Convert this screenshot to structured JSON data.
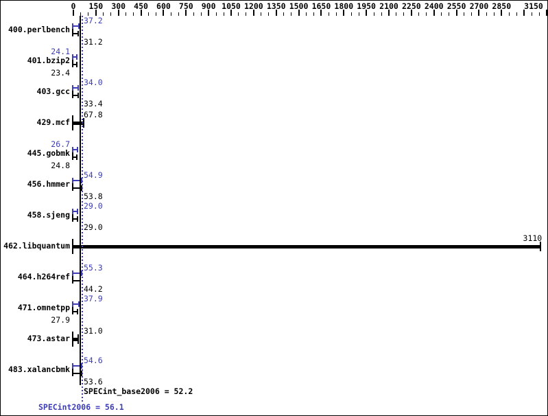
{
  "chart_data": {
    "type": "bar",
    "orientation": "horizontal",
    "title": "",
    "xlabel": "",
    "ylabel": "",
    "axis": {
      "min": 0,
      "max": 3150,
      "major_tick_step": 150,
      "minor_tick_step": 50,
      "tick_labels": [
        "0",
        "150",
        "300",
        "450",
        "600",
        "750",
        "900",
        "1050",
        "1200",
        "1350",
        "1500",
        "1650",
        "1800",
        "1950",
        "2100",
        "2250",
        "2400",
        "2550",
        "2700",
        "2850",
        "3150"
      ],
      "skipped_label": "3000",
      "grid": false
    },
    "legend": {
      "peak_series": "SPECint2006 (peak, blue)",
      "base_series": "SPECint_base2006 (base, black)"
    },
    "colors": {
      "peak": "#3c3cb4",
      "base": "#000000",
      "background": "#ffffff"
    },
    "benchmarks": [
      {
        "name": "400.perlbench",
        "style": "double",
        "peak": 37.2,
        "peak_display": "37.2",
        "peak_side": "right",
        "base": 31.2,
        "base_display": "31.2",
        "base_side": "right"
      },
      {
        "name": "401.bzip2",
        "style": "double",
        "peak": 24.1,
        "peak_display": "24.1",
        "peak_side": "left",
        "base": 23.4,
        "base_display": "23.4",
        "base_side": "left"
      },
      {
        "name": "403.gcc",
        "style": "double",
        "peak": 34.0,
        "peak_display": "34.0",
        "peak_side": "right",
        "base": 33.4,
        "base_display": "33.4",
        "base_side": "right"
      },
      {
        "name": "429.mcf",
        "style": "single",
        "value": 67.8,
        "value_display": "67.8",
        "value_side": "right"
      },
      {
        "name": "445.gobmk",
        "style": "double",
        "peak": 26.7,
        "peak_display": "26.7",
        "peak_side": "left",
        "base": 24.8,
        "base_display": "24.8",
        "base_side": "left"
      },
      {
        "name": "456.hmmer",
        "style": "double",
        "peak": 54.9,
        "peak_display": "54.9",
        "peak_side": "right",
        "base": 53.8,
        "base_display": "53.8",
        "base_side": "right"
      },
      {
        "name": "458.sjeng",
        "style": "double",
        "peak": 29.0,
        "peak_display": "29.0",
        "peak_side": "right",
        "base": 29.0,
        "base_display": "29.0",
        "base_side": "right"
      },
      {
        "name": "462.libquantum",
        "style": "single",
        "value": 3110,
        "value_display": "3110",
        "value_side": "bar_end"
      },
      {
        "name": "464.h264ref",
        "style": "double",
        "peak": 55.3,
        "peak_display": "55.3",
        "peak_side": "right",
        "base": 44.2,
        "base_display": "44.2",
        "base_side": "right"
      },
      {
        "name": "471.omnetpp",
        "style": "double",
        "peak": 37.9,
        "peak_display": "37.9",
        "peak_side": "right",
        "base": 27.9,
        "base_display": "27.9",
        "base_side": "left"
      },
      {
        "name": "473.astar",
        "style": "single",
        "value": 31.0,
        "value_display": "31.0",
        "value_side": "right"
      },
      {
        "name": "483.xalancbmk",
        "style": "double",
        "peak": 54.6,
        "peak_display": "54.6",
        "peak_side": "right",
        "base": 53.6,
        "base_display": "53.6",
        "base_side": "right"
      }
    ],
    "means": {
      "base": 52.2,
      "peak": 56.1
    }
  },
  "footer": {
    "base_text": "SPECint_base2006 = 52.2",
    "peak_text": "SPECint2006 = 56.1"
  }
}
